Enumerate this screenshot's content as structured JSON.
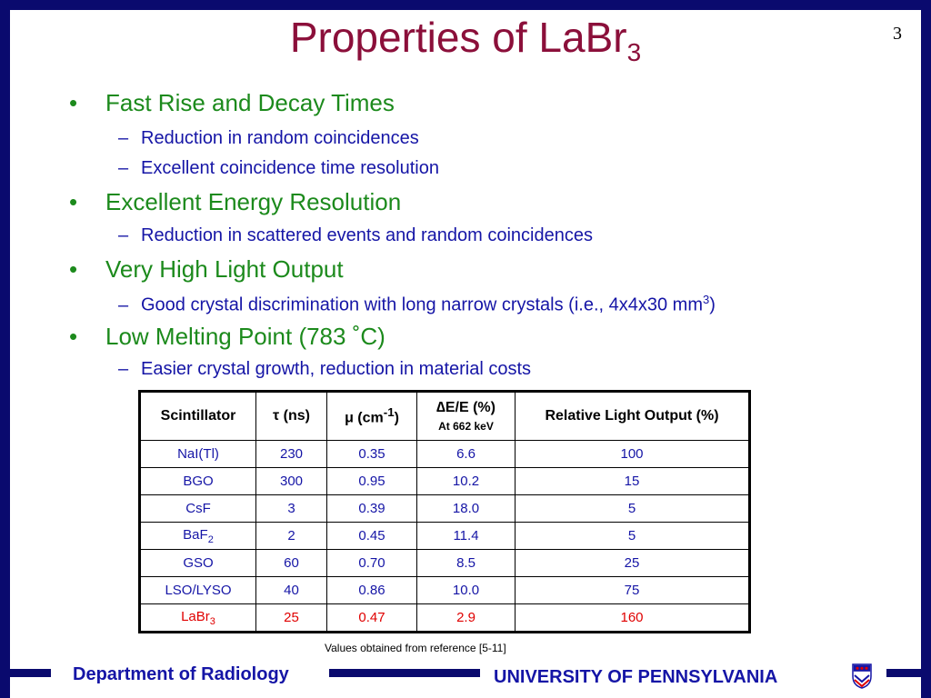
{
  "page_number": "3",
  "title": {
    "main": "Properties of LaBr",
    "subscript": "3"
  },
  "bullets": [
    {
      "text": "Fast Rise and Decay Times",
      "subs": [
        "Reduction in random coincidences",
        "Excellent coincidence time resolution"
      ]
    },
    {
      "text": "Excellent Energy Resolution",
      "subs": [
        "Reduction in scattered events and random coincidences"
      ]
    },
    {
      "text": "Very High Light Output",
      "subs": [
        "Good crystal discrimination with long narrow crystals (i.e., 4x4x30 mm"
      ]
    },
    {
      "text": "Low Melting Point (783 ˚C)",
      "subs": [
        "Easier crystal growth, reduction in material costs"
      ]
    }
  ],
  "sub_superscript": "3",
  "sub_suffix": ")",
  "table": {
    "headers": [
      "Scintillator",
      "τ (ns)",
      "μ (cm",
      "-1",
      ")",
      "∆E/E (%)",
      "At 662 keV",
      "Relative Light Output (%)"
    ],
    "rows": [
      [
        "NaI(Tl)",
        "230",
        "0.35",
        "6.6",
        "100"
      ],
      [
        "BGO",
        "300",
        "0.95",
        "10.2",
        "15"
      ],
      [
        "CsF",
        "3",
        "0.39",
        "18.0",
        "5"
      ],
      [
        "BaF",
        "2",
        "0.45",
        "11.4",
        "5"
      ],
      [
        "GSO",
        "60",
        "0.70",
        "8.5",
        "25"
      ],
      [
        "LSO/LYSO",
        "40",
        "0.86",
        "10.0",
        "75"
      ],
      [
        "LaBr",
        "25",
        "0.47",
        "2.9",
        "160"
      ]
    ],
    "row_subscripts": {
      "3": "2",
      "6": "3"
    }
  },
  "footnote": "Values obtained from reference [5-11]",
  "footer": {
    "department": "Department of Radiology",
    "university": "UNIVERSITY OF PENNSYLVANIA",
    "crest_icon": "penn-shield-icon"
  },
  "colors": {
    "frame": "#0a0a6e",
    "title": "#8b0f3a",
    "bullet": "#1c8a1c",
    "sub_bullet": "#1515a6",
    "highlight": "#e00000"
  }
}
